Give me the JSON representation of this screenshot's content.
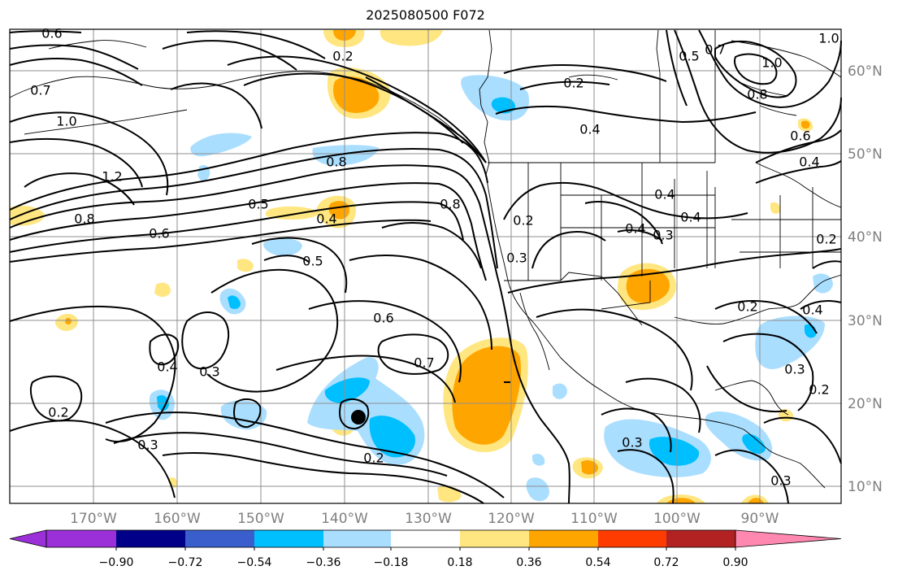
{
  "title": "2025080500 F072",
  "colorbar": {
    "ticks": [
      "−0.90",
      "−0.72",
      "−0.54",
      "−0.36",
      "−0.18",
      "0.18",
      "0.36",
      "0.54",
      "0.72",
      "0.90"
    ],
    "colors": [
      "#9b30d9",
      "#000088",
      "#3a5fcd",
      "#00bfff",
      "#aadeff",
      "#ffffff",
      "#ffe680",
      "#ffa500",
      "#ff3c00",
      "#b22222",
      "#ff88b0"
    ]
  },
  "lon_labels": [
    "170°W",
    "160°W",
    "150°W",
    "140°W",
    "130°W",
    "120°W",
    "110°W",
    "100°W",
    "90°W"
  ],
  "lat_labels": [
    "60°N",
    "50°N",
    "40°N",
    "30°N",
    "20°N",
    "10°N"
  ],
  "contour_labels": [
    "0.6",
    "0.2",
    "0.7",
    "1.0",
    "1.2",
    "0.8",
    "0.6",
    "0.5",
    "0.4",
    "0.8",
    "0.5",
    "0.8",
    "0.2",
    "0.4",
    "0.2",
    "0.3",
    "0.4",
    "0.4",
    "0.3",
    "0.6",
    "0.7",
    "0.4",
    "0.3",
    "0.2",
    "0.3",
    "0.2",
    "0.3",
    "0.2",
    "0.4",
    "0.3",
    "0.4",
    "0.2",
    "0.5",
    "0.7",
    "1.0",
    "0.8",
    "0.6",
    "1.0",
    "0.4",
    "0.2",
    "0.3"
  ]
}
